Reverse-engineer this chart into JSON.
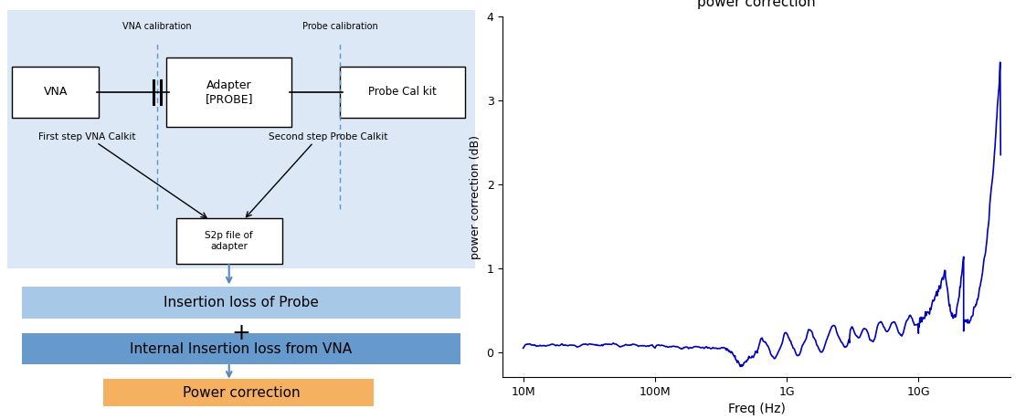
{
  "title": "power correction",
  "xlabel": "Freq (Hz)",
  "ylabel": "power correction (dB)",
  "ylim": [
    -0.3,
    4.0
  ],
  "xlim_log": [
    7000000.0,
    50000000000.0
  ],
  "line_color": "#0000bb",
  "line_width": 1.2,
  "top_bg_color": "#dce8f5",
  "box_color_blue_light": "#a8c8e8",
  "box_color_blue_dark": "#6699cc",
  "box_color_orange": "#f5b060",
  "arrow_color": "#5588bb",
  "vna_cal_label": "VNA calibration",
  "probe_cal_label": "Probe calibration",
  "vna_box_label": "VNA",
  "adapter_box_label": "Adapter\n[PROBE]",
  "probe_cal_kit_label": "Probe Cal kit",
  "first_step_label": "First step VNA Calkit",
  "second_step_label": "Second step Probe Calkit",
  "s2p_label": "S2p file of\nadapter",
  "insertion_loss_label": "Insertion loss of Probe",
  "internal_insertion_label": "Internal Insertion loss from VNA",
  "power_correction_label": "Power correction",
  "plus_symbol": "+"
}
